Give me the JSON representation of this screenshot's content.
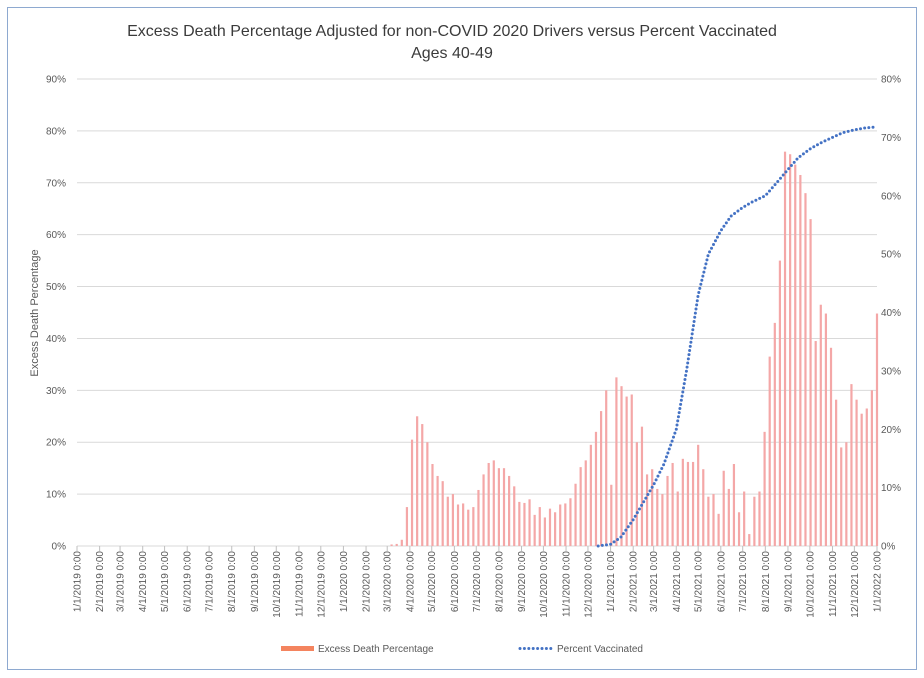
{
  "chart_data": {
    "type": "bar",
    "title": "Excess Death Percentage Adjusted for non-COVID 2020 Drivers versus Percent Vaccinated",
    "subtitle": "Ages 40-49",
    "ylabel": "Excess Death Percentage",
    "y2label": "",
    "ylim": [
      0,
      90
    ],
    "y2lim": [
      0,
      80
    ],
    "y_ticks": [
      "0%",
      "10%",
      "20%",
      "30%",
      "40%",
      "50%",
      "60%",
      "70%",
      "80%",
      "90%"
    ],
    "y2_ticks": [
      "0%",
      "10%",
      "20%",
      "30%",
      "40%",
      "50%",
      "60%",
      "70%",
      "80%"
    ],
    "x_start": "1/1/2019",
    "x_end": "1/1/2022",
    "x_ticks": [
      "1/1/2019 0:00",
      "2/1/2019 0:00",
      "3/1/2019 0:00",
      "4/1/2019 0:00",
      "5/1/2019 0:00",
      "6/1/2019 0:00",
      "7/1/2019 0:00",
      "8/1/2019 0:00",
      "9/1/2019 0:00",
      "10/1/2019 0:00",
      "11/1/2019 0:00",
      "12/1/2019 0:00",
      "1/1/2020 0:00",
      "2/1/2020 0:00",
      "3/1/2020 0:00",
      "4/1/2020 0:00",
      "5/1/2020 0:00",
      "6/1/2020 0:00",
      "7/1/2020 0:00",
      "8/1/2020 0:00",
      "9/1/2020 0:00",
      "10/1/2020 0:00",
      "11/1/2020 0:00",
      "12/1/2020 0:00",
      "1/1/2021 0:00",
      "2/1/2021 0:00",
      "3/1/2021 0:00",
      "4/1/2021 0:00",
      "5/1/2021 0:00",
      "6/1/2021 0:00",
      "7/1/2021 0:00",
      "8/1/2021 0:00",
      "9/1/2021 0:00",
      "10/1/2021 0:00",
      "11/1/2021 0:00",
      "12/1/2021 0:00",
      "1/1/2022 0:00"
    ],
    "grid": true,
    "legend_position": "bottom",
    "colors": {
      "bar": "#f4a7a7",
      "bar_legend": "#f4845f",
      "line": "#4472c4"
    },
    "series": [
      {
        "name": "Excess Death Percentage",
        "kind": "bar",
        "axis": "left",
        "points": [
          [
            "3/7/2020",
            0.3
          ],
          [
            "3/14/2020",
            0.4
          ],
          [
            "3/21/2020",
            1.2
          ],
          [
            "3/28/2020",
            7.5
          ],
          [
            "4/4/2020",
            20.5
          ],
          [
            "4/11/2020",
            25
          ],
          [
            "4/18/2020",
            23.5
          ],
          [
            "4/25/2020",
            20
          ],
          [
            "5/2/2020",
            15.8
          ],
          [
            "5/9/2020",
            13.5
          ],
          [
            "5/16/2020",
            12.5
          ],
          [
            "5/23/2020",
            9.5
          ],
          [
            "5/30/2020",
            10
          ],
          [
            "6/6/2020",
            8
          ],
          [
            "6/13/2020",
            8.2
          ],
          [
            "6/20/2020",
            7
          ],
          [
            "6/27/2020",
            7.5
          ],
          [
            "7/4/2020",
            10.8
          ],
          [
            "7/11/2020",
            13.8
          ],
          [
            "7/18/2020",
            16
          ],
          [
            "7/25/2020",
            16.5
          ],
          [
            "8/1/2020",
            15
          ],
          [
            "8/8/2020",
            15
          ],
          [
            "8/15/2020",
            13.5
          ],
          [
            "8/22/2020",
            11.5
          ],
          [
            "8/29/2020",
            8.5
          ],
          [
            "9/5/2020",
            8.3
          ],
          [
            "9/12/2020",
            9
          ],
          [
            "9/19/2020",
            6
          ],
          [
            "9/26/2020",
            7.5
          ],
          [
            "10/3/2020",
            5.5
          ],
          [
            "10/10/2020",
            7.2
          ],
          [
            "10/17/2020",
            6.5
          ],
          [
            "10/24/2020",
            8
          ],
          [
            "10/31/2020",
            8.2
          ],
          [
            "11/7/2020",
            9.2
          ],
          [
            "11/14/2020",
            12
          ],
          [
            "11/21/2020",
            15.2
          ],
          [
            "11/28/2020",
            16.5
          ],
          [
            "12/5/2020",
            19.5
          ],
          [
            "12/12/2020",
            22
          ],
          [
            "12/19/2020",
            26
          ],
          [
            "12/26/2020",
            30
          ],
          [
            "1/2/2021",
            11.8
          ],
          [
            "1/9/2021",
            32.5
          ],
          [
            "1/16/2021",
            30.8
          ],
          [
            "1/23/2021",
            28.8
          ],
          [
            "1/30/2021",
            29.2
          ],
          [
            "2/6/2021",
            20
          ],
          [
            "2/13/2021",
            23
          ],
          [
            "2/20/2021",
            13.8
          ],
          [
            "2/27/2021",
            14.8
          ],
          [
            "3/6/2021",
            11
          ],
          [
            "3/13/2021",
            10
          ],
          [
            "3/20/2021",
            13.5
          ],
          [
            "3/27/2021",
            16
          ],
          [
            "4/3/2021",
            10.5
          ],
          [
            "4/10/2021",
            16.8
          ],
          [
            "4/17/2021",
            16.2
          ],
          [
            "4/24/2021",
            16.2
          ],
          [
            "5/1/2021",
            19.5
          ],
          [
            "5/8/2021",
            14.8
          ],
          [
            "5/15/2021",
            9.5
          ],
          [
            "5/22/2021",
            10
          ],
          [
            "5/29/2021",
            6.2
          ],
          [
            "6/5/2021",
            14.5
          ],
          [
            "6/12/2021",
            11
          ],
          [
            "6/19/2021",
            15.8
          ],
          [
            "6/26/2021",
            6.5
          ],
          [
            "7/3/2021",
            10.5
          ],
          [
            "7/10/2021",
            2.3
          ],
          [
            "7/17/2021",
            9.5
          ],
          [
            "7/24/2021",
            10.5
          ],
          [
            "7/31/2021",
            22
          ],
          [
            "8/7/2021",
            36.5
          ],
          [
            "8/14/2021",
            43
          ],
          [
            "8/21/2021",
            55
          ],
          [
            "8/28/2021",
            76
          ],
          [
            "9/4/2021",
            75.5
          ],
          [
            "9/11/2021",
            73.5
          ],
          [
            "9/18/2021",
            71.5
          ],
          [
            "9/25/2021",
            68
          ],
          [
            "10/2/2021",
            63
          ],
          [
            "10/9/2021",
            39.5
          ],
          [
            "10/16/2021",
            46.5
          ],
          [
            "10/23/2021",
            44.8
          ],
          [
            "10/30/2021",
            38.2
          ],
          [
            "11/6/2021",
            28.2
          ],
          [
            "11/13/2021",
            19
          ],
          [
            "11/20/2021",
            20
          ],
          [
            "11/27/2021",
            31.2
          ],
          [
            "12/4/2021",
            28.2
          ],
          [
            "12/11/2021",
            25.5
          ],
          [
            "12/18/2021",
            26.5
          ],
          [
            "12/25/2021",
            30
          ],
          [
            "1/1/2022",
            44.8
          ]
        ]
      },
      {
        "name": "Percent Vaccinated",
        "kind": "dotted-line",
        "axis": "right",
        "points": [
          [
            "12/15/2020",
            0
          ],
          [
            "1/1/2021",
            0.3
          ],
          [
            "1/15/2021",
            1.5
          ],
          [
            "2/1/2021",
            4.5
          ],
          [
            "2/15/2021",
            7.5
          ],
          [
            "3/1/2021",
            10.5
          ],
          [
            "3/15/2021",
            14
          ],
          [
            "4/1/2021",
            20
          ],
          [
            "4/15/2021",
            30
          ],
          [
            "5/1/2021",
            43
          ],
          [
            "5/15/2021",
            50
          ],
          [
            "6/1/2021",
            54
          ],
          [
            "6/15/2021",
            56.5
          ],
          [
            "7/1/2021",
            58
          ],
          [
            "7/15/2021",
            59
          ],
          [
            "8/1/2021",
            60
          ],
          [
            "8/15/2021",
            62
          ],
          [
            "9/1/2021",
            64.5
          ],
          [
            "9/15/2021",
            66.5
          ],
          [
            "10/1/2021",
            68
          ],
          [
            "10/15/2021",
            69
          ],
          [
            "11/1/2021",
            70
          ],
          [
            "11/15/2021",
            70.8
          ],
          [
            "12/1/2021",
            71.3
          ],
          [
            "12/15/2021",
            71.6
          ],
          [
            "1/1/2022",
            71.8
          ]
        ]
      }
    ]
  }
}
